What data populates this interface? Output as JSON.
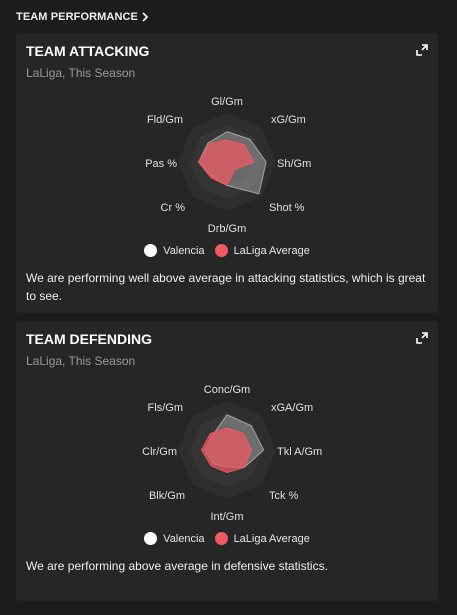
{
  "header": {
    "title": "TEAM PERFORMANCE"
  },
  "colors": {
    "team": "#ffffff",
    "league": "#f05a63",
    "web_fill": "#2e2e2e",
    "card_bg": "#262626"
  },
  "legend": {
    "team": "Valencia",
    "league": "LaLiga Average"
  },
  "attacking": {
    "title": "TEAM ATTACKING",
    "subtitle": "LaLiga, This Season",
    "axes": [
      "Gl/Gm",
      "xG/Gm",
      "Sh/Gm",
      "Shot %",
      "Drb/Gm",
      "Cr %",
      "Pas %",
      "Fld/Gm"
    ],
    "summary": "We are performing well above average in attacking statistics, which is great to see.",
    "chart_data": {
      "type": "radar",
      "categories": [
        "Gl/Gm",
        "xG/Gm",
        "Sh/Gm",
        "Shot %",
        "Drb/Gm",
        "Cr %",
        "Pas %",
        "Fld/Gm"
      ],
      "series": [
        {
          "name": "Valencia",
          "values": [
            0.62,
            0.66,
            0.8,
            0.92,
            0.48,
            0.42,
            0.58,
            0.55
          ]
        },
        {
          "name": "LaLiga Average",
          "values": [
            0.45,
            0.5,
            0.55,
            0.22,
            0.48,
            0.46,
            0.58,
            0.52
          ]
        }
      ]
    }
  },
  "defending": {
    "title": "TEAM DEFENDING",
    "subtitle": "LaLiga, This Season",
    "axes": [
      "Conc/Gm",
      "xGA/Gm",
      "Tkl A/Gm",
      "Tck %",
      "Int/Gm",
      "Blk/Gm",
      "Clr/Gm",
      "Fls/Gm"
    ],
    "summary": "We are performing above average in defensive statistics.",
    "chart_data": {
      "type": "radar",
      "categories": [
        "Conc/Gm",
        "xGA/Gm",
        "Tkl A/Gm",
        "Tck %",
        "Int/Gm",
        "Blk/Gm",
        "Clr/Gm",
        "Fls/Gm"
      ],
      "series": [
        {
          "name": "Valencia",
          "values": [
            0.72,
            0.7,
            0.75,
            0.5,
            0.35,
            0.4,
            0.46,
            0.42
          ]
        },
        {
          "name": "LaLiga Average",
          "values": [
            0.45,
            0.48,
            0.5,
            0.5,
            0.46,
            0.46,
            0.52,
            0.48
          ]
        }
      ]
    }
  }
}
